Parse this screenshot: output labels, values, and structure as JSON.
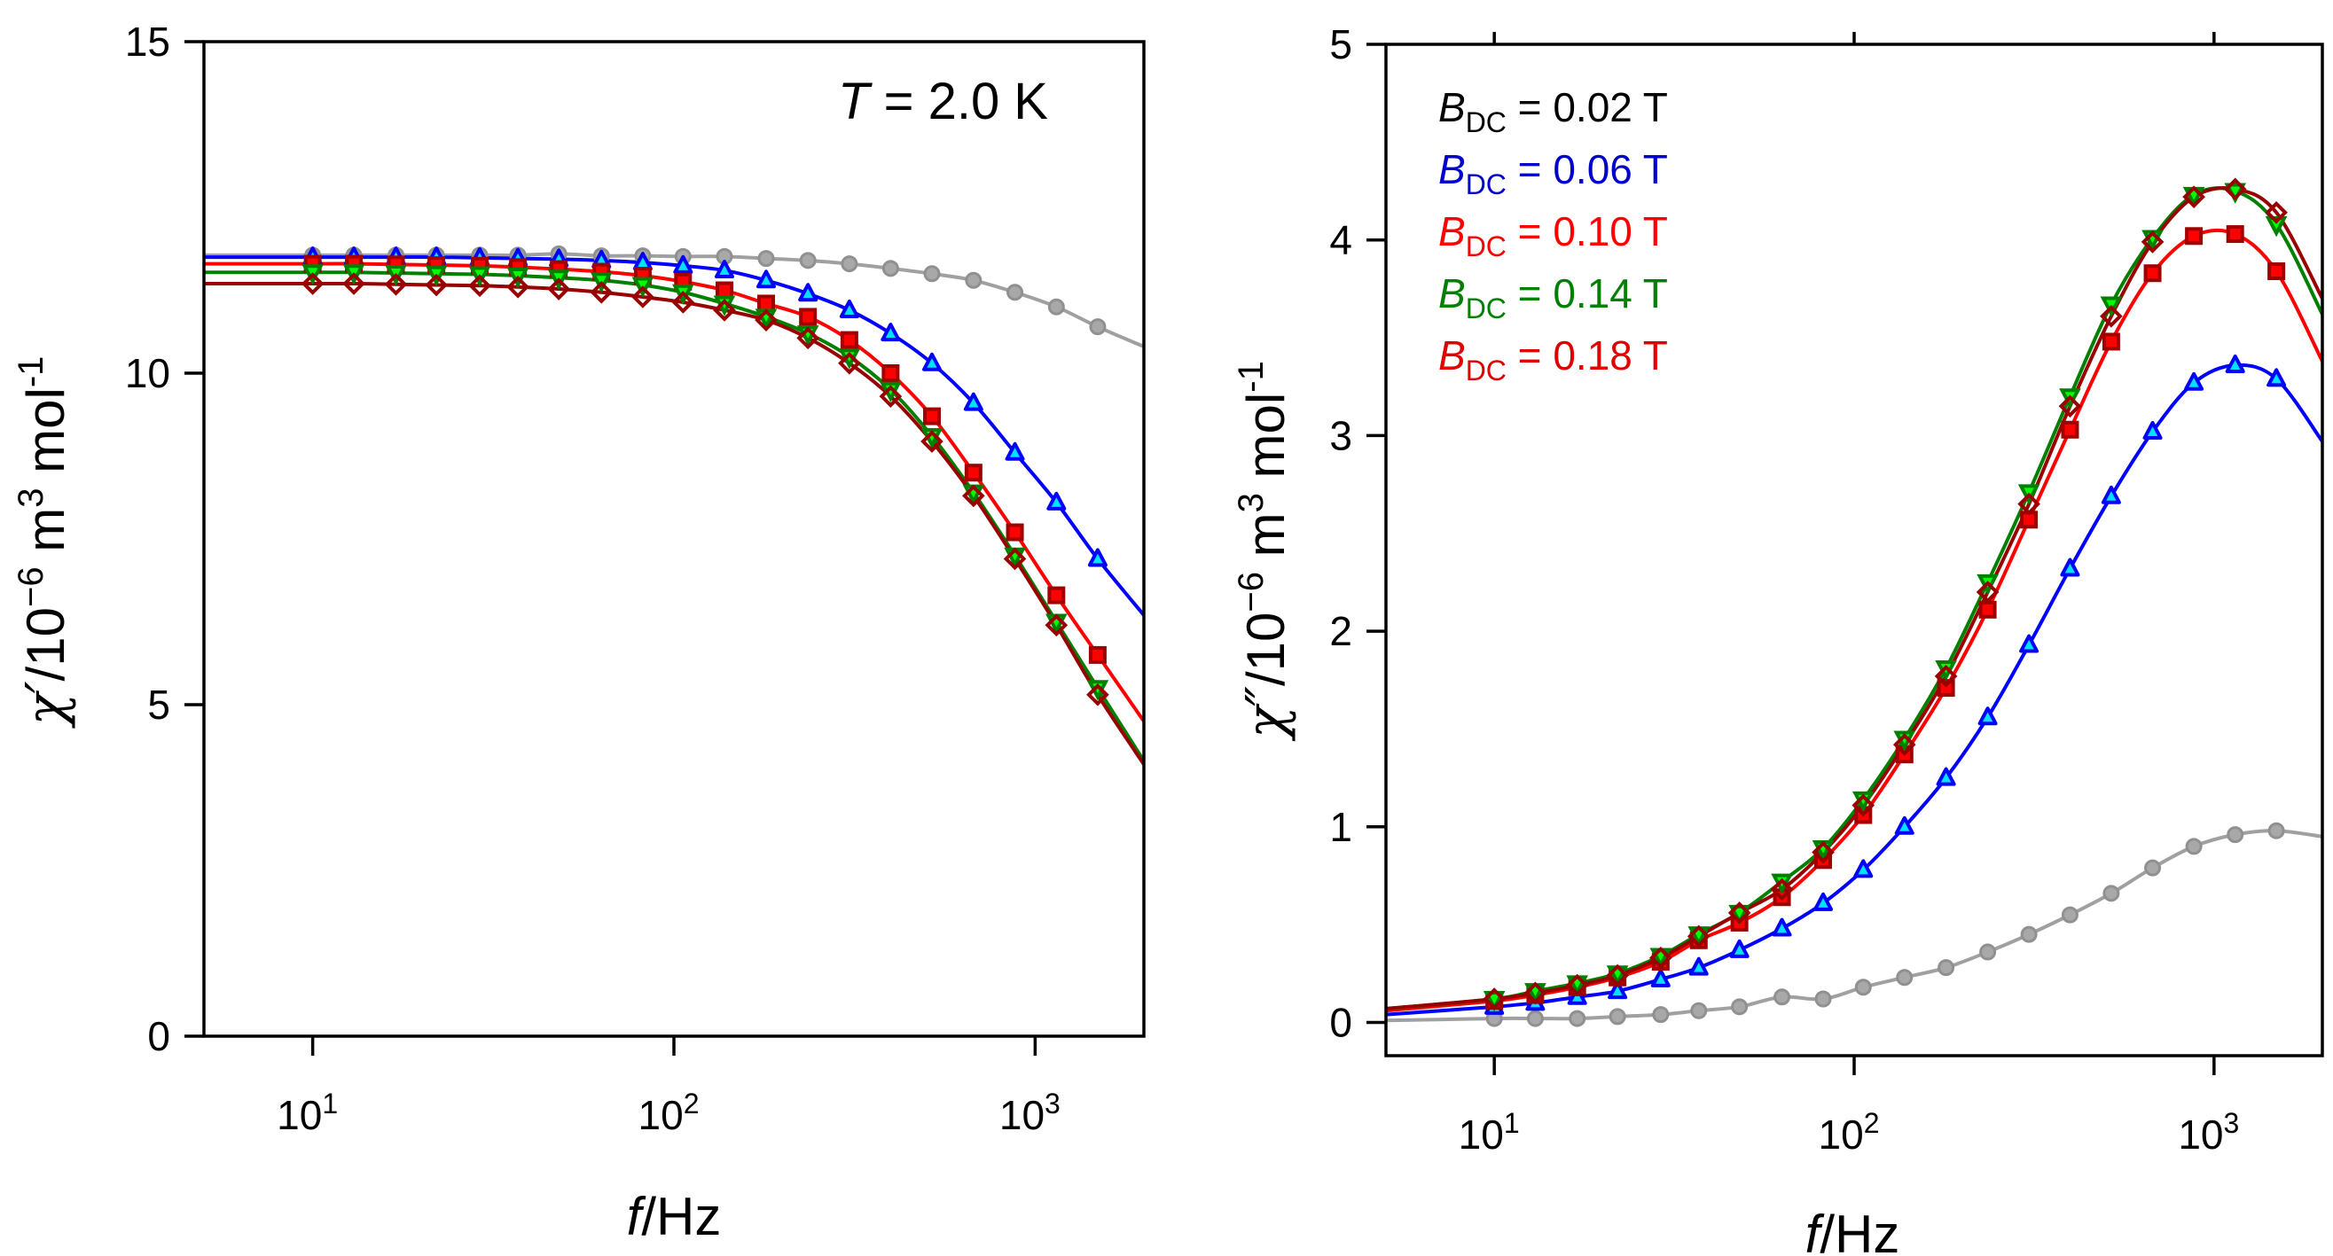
{
  "chart_data": [
    {
      "type": "scatter",
      "panel": "left",
      "xscale": "log",
      "xlim": [
        5,
        2000
      ],
      "ylim": [
        0,
        15
      ],
      "yticks": [
        0,
        5,
        10,
        15
      ],
      "ytick_labels": [
        "0",
        "5",
        "10",
        "15"
      ],
      "xticks": [
        10,
        100,
        1000
      ],
      "xtick_labels": [
        {
          "base": "10",
          "exp": "1"
        },
        {
          "base": "10",
          "exp": "2"
        },
        {
          "base": "10",
          "exp": "3"
        }
      ],
      "xlabel": {
        "var": "f",
        "unit": "/Hz"
      },
      "ylabel": {
        "symbol": "χ′",
        "prefix": "/10",
        "exp1": "−6",
        "unit1": " m",
        "exp2": "3",
        "unit2": " mol",
        "exp3": "-1"
      },
      "annotation": {
        "var": "T",
        "text": " = 2.0 K"
      },
      "grid": false,
      "x": [
        10,
        13,
        17,
        22,
        29,
        37,
        48,
        63,
        82,
        106,
        138,
        180,
        235,
        306,
        398,
        518,
        675,
        879,
        1145,
        1490
      ],
      "fit_x": [
        5,
        2000
      ],
      "series": [
        {
          "name": "B_DC = 0.02 T",
          "marker": "circle",
          "values": [
            11.78,
            11.78,
            11.78,
            11.78,
            11.78,
            11.78,
            11.8,
            11.77,
            11.77,
            11.76,
            11.76,
            11.73,
            11.7,
            11.65,
            11.58,
            11.5,
            11.4,
            11.22,
            11.0,
            10.7
          ],
          "fit_ends": [
            11.78,
            10.4
          ]
        },
        {
          "name": "B_DC = 0.06 T",
          "marker": "triangle-up",
          "values": [
            11.75,
            11.75,
            11.75,
            11.75,
            11.74,
            11.73,
            11.72,
            11.7,
            11.67,
            11.62,
            11.55,
            11.4,
            11.2,
            10.95,
            10.6,
            10.15,
            9.55,
            8.8,
            8.05,
            7.2
          ],
          "fit_ends": [
            11.75,
            6.35
          ]
        },
        {
          "name": "B_DC = 0.10 T",
          "marker": "square",
          "values": [
            11.65,
            11.65,
            11.64,
            11.63,
            11.62,
            11.6,
            11.57,
            11.53,
            11.47,
            11.38,
            11.25,
            11.05,
            10.85,
            10.5,
            10.0,
            9.35,
            8.5,
            7.6,
            6.65,
            5.75
          ],
          "fit_ends": [
            11.65,
            4.75
          ]
        },
        {
          "name": "B_DC = 0.14 T",
          "marker": "triangle-down",
          "values": [
            11.52,
            11.52,
            11.51,
            11.5,
            11.49,
            11.47,
            11.44,
            11.4,
            11.33,
            11.22,
            11.05,
            10.85,
            10.6,
            10.25,
            9.75,
            9.05,
            8.2,
            7.25,
            6.25,
            5.25
          ],
          "fit_ends": [
            11.52,
            4.15
          ]
        },
        {
          "name": "B_DC = 0.18 T",
          "marker": "diamond-open",
          "values": [
            11.35,
            11.35,
            11.34,
            11.33,
            11.32,
            11.3,
            11.27,
            11.22,
            11.15,
            11.07,
            10.95,
            10.8,
            10.53,
            10.15,
            9.65,
            8.97,
            8.15,
            7.2,
            6.2,
            5.15
          ],
          "fit_ends": [
            11.35,
            4.1
          ]
        }
      ]
    },
    {
      "type": "scatter",
      "panel": "right",
      "xscale": "log",
      "xlim": [
        5,
        2000
      ],
      "ylim": [
        -0.17,
        5
      ],
      "yticks": [
        0,
        1,
        2,
        3,
        4,
        5
      ],
      "ytick_labels": [
        "0",
        "1",
        "2",
        "3",
        "4",
        "5"
      ],
      "xticks": [
        10,
        100,
        1000
      ],
      "xtick_labels": [
        {
          "base": "10",
          "exp": "1"
        },
        {
          "base": "10",
          "exp": "2"
        },
        {
          "base": "10",
          "exp": "3"
        }
      ],
      "xlabel": {
        "var": "f",
        "unit": "/Hz"
      },
      "ylabel": {
        "symbol": "χ″",
        "prefix": "/10",
        "exp1": "−6",
        "unit1": " m",
        "exp2": "3",
        "unit2": " mol",
        "exp3": "-1"
      },
      "legend": {
        "placement": "top-left",
        "entries": [
          {
            "var": "B",
            "sub": "DC",
            "text": " = 0.02 T",
            "color": "#000000"
          },
          {
            "var": "B",
            "sub": "DC",
            "text": " = 0.06 T",
            "color": "#0000cc"
          },
          {
            "var": "B",
            "sub": "DC",
            "text": " = 0.10 T",
            "color": "#ff0000"
          },
          {
            "var": "B",
            "sub": "DC",
            "text": " = 0.14 T",
            "color": "#008000"
          },
          {
            "var": "B",
            "sub": "DC",
            "text": " = 0.18 T",
            "color": "#e00000"
          }
        ]
      },
      "grid": false,
      "x": [
        10,
        13,
        17,
        22,
        29,
        37,
        48,
        63,
        82,
        106,
        138,
        180,
        235,
        306,
        398,
        518,
        675,
        879,
        1145,
        1490
      ],
      "fit_x": [
        5,
        2000
      ],
      "series": [
        {
          "name": "B_DC = 0.02 T",
          "marker": "circle",
          "values": [
            0.02,
            0.02,
            0.02,
            0.03,
            0.04,
            0.06,
            0.08,
            0.13,
            0.12,
            0.18,
            0.23,
            0.28,
            0.36,
            0.45,
            0.55,
            0.66,
            0.79,
            0.9,
            0.96,
            0.98
          ],
          "fit_ends": [
            0.01,
            0.95
          ]
        },
        {
          "name": "B_DC = 0.06 T",
          "marker": "triangle-up",
          "values": [
            0.08,
            0.1,
            0.13,
            0.16,
            0.22,
            0.28,
            0.37,
            0.48,
            0.61,
            0.78,
            1.0,
            1.25,
            1.56,
            1.93,
            2.32,
            2.69,
            3.02,
            3.27,
            3.36,
            3.29
          ],
          "fit_ends": [
            0.04,
            2.97
          ]
        },
        {
          "name": "B_DC = 0.10 T",
          "marker": "square",
          "values": [
            0.11,
            0.14,
            0.18,
            0.23,
            0.31,
            0.42,
            0.51,
            0.64,
            0.83,
            1.06,
            1.37,
            1.71,
            2.11,
            2.57,
            3.03,
            3.48,
            3.83,
            4.02,
            4.03,
            3.84
          ],
          "fit_ends": [
            0.06,
            3.38
          ]
        },
        {
          "name": "B_DC = 0.14 T",
          "marker": "triangle-down",
          "values": [
            0.12,
            0.16,
            0.2,
            0.25,
            0.34,
            0.45,
            0.56,
            0.72,
            0.89,
            1.14,
            1.45,
            1.81,
            2.25,
            2.71,
            3.2,
            3.67,
            4.01,
            4.23,
            4.25,
            4.08
          ],
          "fit_ends": [
            0.07,
            3.62
          ]
        },
        {
          "name": "B_DC = 0.18 T",
          "marker": "diamond-open",
          "values": [
            0.12,
            0.15,
            0.19,
            0.24,
            0.33,
            0.44,
            0.56,
            0.68,
            0.87,
            1.11,
            1.42,
            1.77,
            2.2,
            2.65,
            3.15,
            3.61,
            3.99,
            4.22,
            4.26,
            4.14
          ],
          "fit_ends": [
            0.07,
            3.7
          ]
        }
      ]
    }
  ],
  "styles": {
    "series": [
      {
        "line": "#a0a0a0",
        "fill": "#a8a8a8",
        "stroke": "#909090"
      },
      {
        "line": "#0000ff",
        "fill": "#00e0ff",
        "stroke": "#0000ff"
      },
      {
        "line": "#ff0000",
        "fill": "#ff0000",
        "stroke": "#a00000"
      },
      {
        "line": "#008000",
        "fill": "#00ff00",
        "stroke": "#008000"
      },
      {
        "line": "#990000",
        "fill": "none",
        "stroke": "#990000"
      }
    ]
  }
}
